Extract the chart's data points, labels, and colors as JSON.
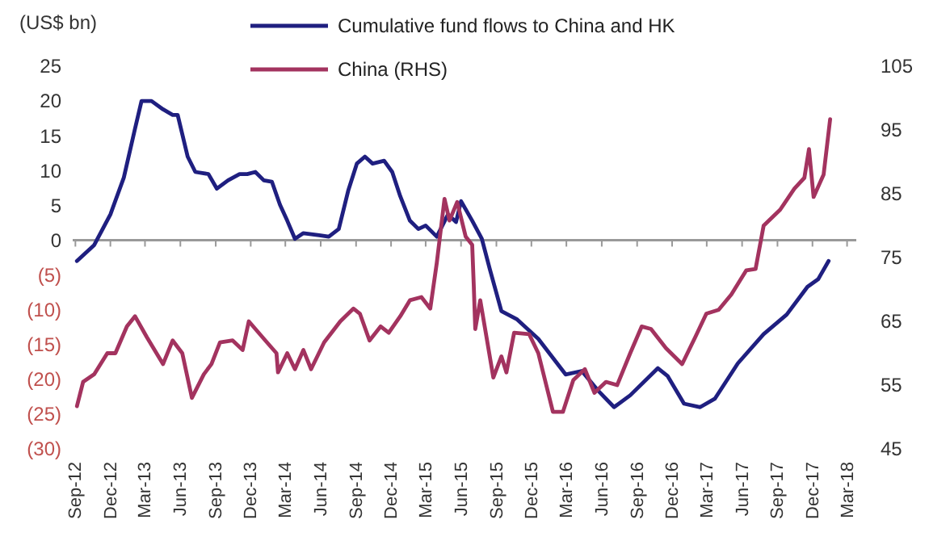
{
  "chart_data": {
    "type": "line",
    "ylabel": "(US$ bn)",
    "legend": "top",
    "ref_lines": [
      {
        "axis": "y",
        "value": 0,
        "color": "#999999"
      }
    ],
    "line_style": "solid",
    "marker": "none",
    "xlim": [
      "2012-08-25",
      "2018-03-25"
    ],
    "xticks": [
      {
        "value": "2012-09-01",
        "label": "Sep-12"
      },
      {
        "value": "2012-12-01",
        "label": "Dec-12"
      },
      {
        "value": "2013-03-01",
        "label": "Mar-13"
      },
      {
        "value": "2013-06-01",
        "label": "Jun-13"
      },
      {
        "value": "2013-09-01",
        "label": "Sep-13"
      },
      {
        "value": "2013-12-01",
        "label": "Dec-13"
      },
      {
        "value": "2014-03-01",
        "label": "Mar-14"
      },
      {
        "value": "2014-06-01",
        "label": "Jun-14"
      },
      {
        "value": "2014-09-01",
        "label": "Sep-14"
      },
      {
        "value": "2014-12-01",
        "label": "Dec-14"
      },
      {
        "value": "2015-03-01",
        "label": "Mar-15"
      },
      {
        "value": "2015-06-01",
        "label": "Jun-15"
      },
      {
        "value": "2015-09-01",
        "label": "Sep-15"
      },
      {
        "value": "2015-12-01",
        "label": "Dec-15"
      },
      {
        "value": "2016-03-01",
        "label": "Mar-16"
      },
      {
        "value": "2016-06-01",
        "label": "Jun-16"
      },
      {
        "value": "2016-09-01",
        "label": "Sep-16"
      },
      {
        "value": "2016-12-01",
        "label": "Dec-16"
      },
      {
        "value": "2017-03-01",
        "label": "Mar-17"
      },
      {
        "value": "2017-06-01",
        "label": "Jun-17"
      },
      {
        "value": "2017-09-01",
        "label": "Sep-17"
      },
      {
        "value": "2017-12-01",
        "label": "Dec-17"
      },
      {
        "value": "2018-03-01",
        "label": "Mar-18"
      }
    ],
    "ylim": [
      -30,
      25
    ],
    "yticks": [
      25,
      20,
      15,
      10,
      5,
      0,
      {
        "value": -5,
        "label": "(5)"
      },
      {
        "value": -10,
        "label": "(10)"
      },
      {
        "value": -15,
        "label": "(15)"
      },
      {
        "value": -20,
        "label": "(20)"
      },
      {
        "value": -25,
        "label": "(25)"
      },
      {
        "value": -30,
        "label": "(30)"
      }
    ],
    "y2lim": [
      45,
      105
    ],
    "y2ticks": [
      105,
      95,
      85,
      75,
      65,
      55,
      45
    ],
    "series": [
      {
        "name": "Cumulative fund flows to China and HK",
        "color": "#1f1f80",
        "x": [
          "2012-09-05",
          "2012-10-20",
          "2012-12-01",
          "2013-01-05",
          "2013-02-03",
          "2013-02-20",
          "2013-03-18",
          "2013-04-17",
          "2013-05-12",
          "2013-05-25",
          "2013-06-20",
          "2013-07-10",
          "2013-08-13",
          "2013-09-04",
          "2013-10-03",
          "2013-11-02",
          "2013-11-22",
          "2013-12-13",
          "2014-01-04",
          "2014-01-25",
          "2014-02-15",
          "2014-03-06",
          "2014-03-26",
          "2014-04-17",
          "2014-05-28",
          "2014-06-22",
          "2014-07-18",
          "2014-08-12",
          "2014-09-03",
          "2014-09-24",
          "2014-10-14",
          "2014-11-13",
          "2014-12-04",
          "2014-12-25",
          "2015-01-19",
          "2015-02-10",
          "2015-03-01",
          "2015-03-30",
          "2015-04-28",
          "2015-05-19",
          "2015-06-01",
          "2015-06-30",
          "2015-07-25",
          "2015-08-15",
          "2015-09-14",
          "2015-10-25",
          "2015-12-19",
          "2016-02-28",
          "2016-04-10",
          "2016-05-22",
          "2016-07-03",
          "2016-08-14",
          "2016-10-25",
          "2016-11-19",
          "2017-01-01",
          "2017-02-12",
          "2017-03-22",
          "2017-05-21",
          "2017-07-27",
          "2017-09-25",
          "2017-11-18",
          "2017-12-16",
          "2018-01-12"
        ],
        "values": [
          -3,
          -0.7,
          3.7,
          9,
          16,
          20,
          20,
          18.8,
          18,
          18,
          12,
          9.8,
          9.5,
          7.4,
          8.6,
          9.5,
          9.5,
          9.8,
          8.6,
          8.4,
          5.1,
          2.8,
          0.2,
          1,
          0.7,
          0.5,
          1.6,
          7.2,
          11,
          12,
          11,
          11.4,
          9.8,
          6.3,
          2.8,
          1.6,
          2.1,
          0.5,
          3.7,
          2.6,
          5.6,
          2.8,
          0.2,
          -4.2,
          -10.2,
          -11.4,
          -14.2,
          -19.3,
          -18.8,
          -21.6,
          -24,
          -22.3,
          -18.4,
          -19.5,
          -23.5,
          -24,
          -22.8,
          -17.7,
          -13.5,
          -10.7,
          -6.7,
          -5.6,
          -3
        ]
      },
      {
        "name": "China (RHS)",
        "color": "#a3335f",
        "axis": "y2",
        "x": [
          "2012-09-05",
          "2012-09-21",
          "2012-10-20",
          "2012-11-23",
          "2012-12-14",
          "2013-01-13",
          "2013-02-03",
          "2013-03-06",
          "2013-04-17",
          "2013-05-12",
          "2013-06-06",
          "2013-07-01",
          "2013-08-01",
          "2013-08-21",
          "2013-09-12",
          "2013-10-15",
          "2013-11-10",
          "2013-11-26",
          "2014-01-08",
          "2014-02-06",
          "2014-02-10",
          "2014-03-06",
          "2014-03-26",
          "2014-04-17",
          "2014-05-07",
          "2014-06-10",
          "2014-07-22",
          "2014-08-25",
          "2014-09-11",
          "2014-10-06",
          "2014-11-04",
          "2014-11-25",
          "2014-12-25",
          "2015-01-19",
          "2015-02-18",
          "2015-03-13",
          "2015-03-30",
          "2015-04-19",
          "2015-05-02",
          "2015-05-22",
          "2015-06-13",
          "2015-06-30",
          "2015-07-04",
          "2015-07-08",
          "2015-07-21",
          "2015-08-24",
          "2015-09-14",
          "2015-09-27",
          "2015-10-17",
          "2015-11-25",
          "2015-12-19",
          "2016-01-26",
          "2016-02-21",
          "2016-03-19",
          "2016-04-18",
          "2016-05-13",
          "2016-06-12",
          "2016-07-11",
          "2016-08-14",
          "2016-09-13",
          "2016-10-07",
          "2016-11-15",
          "2016-12-27",
          "2017-01-30",
          "2017-02-28",
          "2017-04-01",
          "2017-05-04",
          "2017-06-12",
          "2017-07-06",
          "2017-07-27",
          "2017-09-08",
          "2017-10-15",
          "2017-11-10",
          "2017-11-22",
          "2017-12-04",
          "2017-12-30",
          "2018-01-16"
        ],
        "values": [
          51.7,
          55.5,
          56.7,
          60,
          60,
          64.2,
          65.8,
          62.5,
          58.3,
          62,
          60,
          53,
          56.7,
          58.3,
          61.7,
          62,
          60.5,
          65,
          62,
          60,
          57,
          60,
          57.5,
          60.5,
          57.5,
          61.7,
          65,
          67,
          66.2,
          62,
          64.2,
          63.2,
          65.8,
          68.3,
          68.8,
          67,
          74.2,
          84.2,
          80.8,
          83.7,
          78.3,
          77,
          70.8,
          63.8,
          68.3,
          56.2,
          59.5,
          57,
          63.2,
          63,
          60,
          50.8,
          50.8,
          55.8,
          57.5,
          53.8,
          55.5,
          55,
          60,
          64.2,
          63.8,
          60.8,
          58.3,
          62.5,
          66.2,
          66.8,
          69.2,
          73,
          73.2,
          80,
          82.5,
          85.8,
          87.5,
          92,
          84.5,
          88,
          96.7
        ]
      }
    ]
  }
}
